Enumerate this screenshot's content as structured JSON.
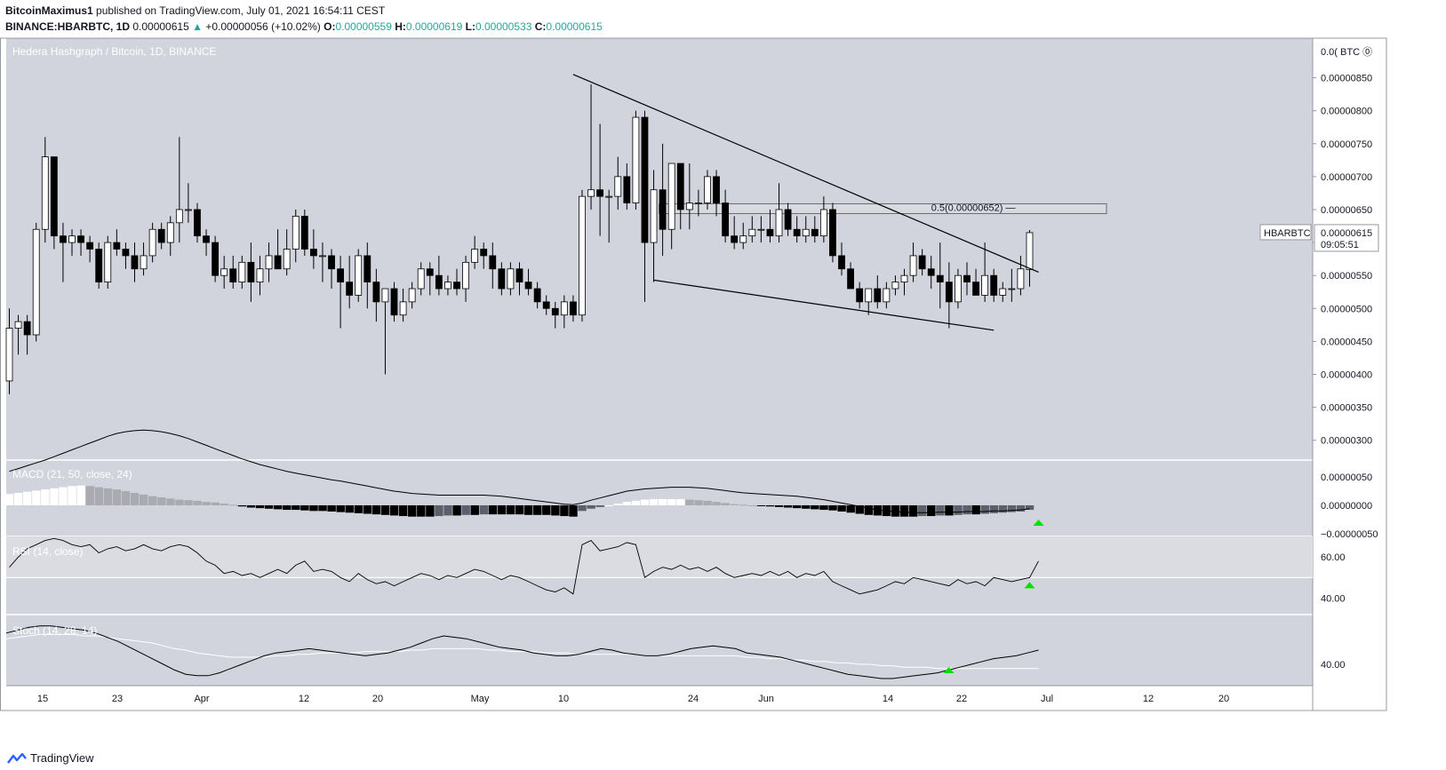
{
  "header": {
    "author": "BitcoinMaximus1",
    "published": "published on TradingView.com, July 01, 2021 16:54:11 CEST",
    "symbol": "BINANCE:HBARBTC, 1D",
    "last": "0.00000615",
    "arrow": "▲",
    "change": "+0.00000056 (+10.02%)",
    "o_label": "O:",
    "o": "0.00000559",
    "h_label": "H:",
    "h": "0.00000619",
    "l_label": "L:",
    "l": "0.00000533",
    "c_label": "C:",
    "c": "0.00000615"
  },
  "footer": {
    "brand": "TradingView"
  },
  "colors": {
    "pane_bg": "#d1d4dc",
    "candle_up": "#ffffff",
    "candle_down": "#000000",
    "signal_triangle": "#00e000",
    "header_value": "#26a69a"
  },
  "chart_data": {
    "type": "candlestick",
    "title": "Hedera Hashgraph / Bitcoin, 1D, BINANCE",
    "y_unit": "BTC",
    "y_ticks": [
      "0.00000850",
      "0.00000800",
      "0.00000750",
      "0.00000700",
      "0.00000650",
      "0.00000600",
      "0.00000550",
      "0.00000500",
      "0.00000450",
      "0.00000400",
      "0.00000350",
      "0.00000300"
    ],
    "y_top_label": "0.0( BTC ⓪",
    "x_ticks": [
      "15",
      "23",
      "Apr",
      "12",
      "20",
      "May",
      "10",
      "24",
      "Jun",
      "14",
      "22",
      "Jul",
      "12",
      "20"
    ],
    "ylim": [
      2.7e-06,
      9.1e-06
    ],
    "price_label": {
      "symbol": "HBARBTC",
      "value": "0.00000615",
      "countdown": "09:05:51"
    },
    "fib_label": "0.5(0.00000652)",
    "fib_level": 6.52e-06,
    "candles": [
      [
        3.9e-06,
        5e-06,
        3.7e-06,
        4.7e-06
      ],
      [
        4.7e-06,
        4.9e-06,
        4.3e-06,
        4.8e-06
      ],
      [
        4.8e-06,
        4.9e-06,
        4.3e-06,
        4.6e-06
      ],
      [
        4.6e-06,
        6.3e-06,
        4.5e-06,
        6.2e-06
      ],
      [
        6.2e-06,
        7.6e-06,
        6e-06,
        7.3e-06
      ],
      [
        7.3e-06,
        7.3e-06,
        5.9e-06,
        6.1e-06
      ],
      [
        6.1e-06,
        6.3e-06,
        5.4e-06,
        6e-06
      ],
      [
        6e-06,
        6.2e-06,
        5.8e-06,
        6.1e-06
      ],
      [
        6.1e-06,
        6.2e-06,
        5.8e-06,
        6e-06
      ],
      [
        6e-06,
        6.1e-06,
        5.7e-06,
        5.9e-06
      ],
      [
        5.9e-06,
        6e-06,
        5.3e-06,
        5.4e-06
      ],
      [
        5.4e-06,
        6.1e-06,
        5.3e-06,
        6e-06
      ],
      [
        6e-06,
        6.2e-06,
        5.8e-06,
        5.9e-06
      ],
      [
        5.9e-06,
        6e-06,
        5.6e-06,
        5.8e-06
      ],
      [
        5.8e-06,
        6e-06,
        5.4e-06,
        5.6e-06
      ],
      [
        5.6e-06,
        6e-06,
        5.5e-06,
        5.8e-06
      ],
      [
        5.8e-06,
        6.3e-06,
        5.7e-06,
        6.2e-06
      ],
      [
        6.2e-06,
        6.3e-06,
        5.9e-06,
        6e-06
      ],
      [
        6e-06,
        6.4e-06,
        5.8e-06,
        6.3e-06
      ],
      [
        6.3e-06,
        7.6e-06,
        6e-06,
        6.5e-06
      ],
      [
        6.5e-06,
        6.9e-06,
        6.3e-06,
        6.5e-06
      ],
      [
        6.5e-06,
        6.6e-06,
        6e-06,
        6.1e-06
      ],
      [
        6.1e-06,
        6.2e-06,
        5.8e-06,
        6e-06
      ],
      [
        6e-06,
        6.1e-06,
        5.4e-06,
        5.5e-06
      ],
      [
        5.5e-06,
        5.8e-06,
        5.3e-06,
        5.6e-06
      ],
      [
        5.6e-06,
        5.8e-06,
        5.3e-06,
        5.4e-06
      ],
      [
        5.4e-06,
        5.8e-06,
        5.3e-06,
        5.7e-06
      ],
      [
        5.7e-06,
        6e-06,
        5.1e-06,
        5.4e-06
      ],
      [
        5.4e-06,
        5.8e-06,
        5.2e-06,
        5.6e-06
      ],
      [
        5.6e-06,
        6e-06,
        5.4e-06,
        5.8e-06
      ],
      [
        5.8e-06,
        6.2e-06,
        5.6e-06,
        5.6e-06
      ],
      [
        5.6e-06,
        6.2e-06,
        5.5e-06,
        5.9e-06
      ],
      [
        5.9e-06,
        6.5e-06,
        5.7e-06,
        6.4e-06
      ],
      [
        6.4e-06,
        6.5e-06,
        5.8e-06,
        5.9e-06
      ],
      [
        5.9e-06,
        6.2e-06,
        5.6e-06,
        5.8e-06
      ],
      [
        5.8e-06,
        6e-06,
        5.4e-06,
        5.8e-06
      ],
      [
        5.8e-06,
        5.9e-06,
        5.3e-06,
        5.6e-06
      ],
      [
        5.6e-06,
        5.8e-06,
        4.7e-06,
        5.4e-06
      ],
      [
        5.4e-06,
        5.8e-06,
        5e-06,
        5.2e-06
      ],
      [
        5.2e-06,
        5.9e-06,
        5.1e-06,
        5.8e-06
      ],
      [
        5.8e-06,
        6e-06,
        5e-06,
        5.4e-06
      ],
      [
        5.4e-06,
        5.6e-06,
        4.8e-06,
        5.1e-06
      ],
      [
        5.1e-06,
        5.3e-06,
        4e-06,
        5.3e-06
      ],
      [
        5.3e-06,
        5.4e-06,
        4.8e-06,
        4.9e-06
      ],
      [
        4.9e-06,
        5.3e-06,
        4.8e-06,
        5.1e-06
      ],
      [
        5.1e-06,
        5.4e-06,
        5e-06,
        5.3e-06
      ],
      [
        5.3e-06,
        5.7e-06,
        5.2e-06,
        5.6e-06
      ],
      [
        5.6e-06,
        5.7e-06,
        5.2e-06,
        5.5e-06
      ],
      [
        5.5e-06,
        5.8e-06,
        5.2e-06,
        5.3e-06
      ],
      [
        5.3e-06,
        5.5e-06,
        5.2e-06,
        5.4e-06
      ],
      [
        5.4e-06,
        5.6e-06,
        5.2e-06,
        5.3e-06
      ],
      [
        5.3e-06,
        5.8e-06,
        5.1e-06,
        5.7e-06
      ],
      [
        5.7e-06,
        6.1e-06,
        5.6e-06,
        5.9e-06
      ],
      [
        5.9e-06,
        6e-06,
        5.6e-06,
        5.8e-06
      ],
      [
        5.8e-06,
        6e-06,
        5.3e-06,
        5.6e-06
      ],
      [
        5.6e-06,
        5.7e-06,
        5.2e-06,
        5.3e-06
      ],
      [
        5.3e-06,
        5.7e-06,
        5.2e-06,
        5.6e-06
      ],
      [
        5.6e-06,
        5.7e-06,
        5.2e-06,
        5.4e-06
      ],
      [
        5.4e-06,
        5.6e-06,
        5.2e-06,
        5.3e-06
      ],
      [
        5.3e-06,
        5.4e-06,
        5e-06,
        5.1e-06
      ],
      [
        5.1e-06,
        5.2e-06,
        4.9e-06,
        5e-06
      ],
      [
        5e-06,
        5.1e-06,
        4.7e-06,
        4.9e-06
      ],
      [
        4.9e-06,
        5.2e-06,
        4.7e-06,
        5.1e-06
      ],
      [
        5.1e-06,
        5.2e-06,
        4.8e-06,
        4.9e-06
      ],
      [
        4.9e-06,
        6.8e-06,
        4.8e-06,
        6.7e-06
      ],
      [
        6.7e-06,
        8.4e-06,
        6.5e-06,
        6.8e-06
      ],
      [
        6.8e-06,
        7.8e-06,
        6.1e-06,
        6.7e-06
      ],
      [
        6.7e-06,
        6.8e-06,
        6e-06,
        6.7e-06
      ],
      [
        6.7e-06,
        7.3e-06,
        6.5e-06,
        7e-06
      ],
      [
        7e-06,
        7.2e-06,
        6.5e-06,
        6.6e-06
      ],
      [
        6.6e-06,
        8e-06,
        6.5e-06,
        7.9e-06
      ],
      [
        7.9e-06,
        8e-06,
        5.1e-06,
        6e-06
      ],
      [
        6e-06,
        7.1e-06,
        5.4e-06,
        6.8e-06
      ],
      [
        6.8e-06,
        7.5e-06,
        5.8e-06,
        6.2e-06
      ],
      [
        6.2e-06,
        7.2e-06,
        5.9e-06,
        7.2e-06
      ],
      [
        7.2e-06,
        7.2e-06,
        6.2e-06,
        6.5e-06
      ],
      [
        6.5e-06,
        7.2e-06,
        6.2e-06,
        6.6e-06
      ],
      [
        6.6e-06,
        6.8e-06,
        6.4e-06,
        6.6e-06
      ],
      [
        6.6e-06,
        7.1e-06,
        6.5e-06,
        7e-06
      ],
      [
        7e-06,
        7.1e-06,
        6.4e-06,
        6.6e-06
      ],
      [
        6.6e-06,
        6.8e-06,
        6e-06,
        6.1e-06
      ],
      [
        6.1e-06,
        6.4e-06,
        5.9e-06,
        6e-06
      ],
      [
        6e-06,
        6.3e-06,
        5.9e-06,
        6.1e-06
      ],
      [
        6.1e-06,
        6.4e-06,
        6e-06,
        6.2e-06
      ],
      [
        6.2e-06,
        6.4e-06,
        6e-06,
        6.2e-06
      ],
      [
        6.2e-06,
        6.5e-06,
        6e-06,
        6.1e-06
      ],
      [
        6.1e-06,
        6.9e-06,
        6e-06,
        6.5e-06
      ],
      [
        6.5e-06,
        6.6e-06,
        6.1e-06,
        6.2e-06
      ],
      [
        6.2e-06,
        6.4e-06,
        6e-06,
        6.1e-06
      ],
      [
        6.1e-06,
        6.4e-06,
        6e-06,
        6.2e-06
      ],
      [
        6.2e-06,
        6.4e-06,
        6e-06,
        6.1e-06
      ],
      [
        6.1e-06,
        6.7e-06,
        6e-06,
        6.5e-06
      ],
      [
        6.5e-06,
        6.6e-06,
        5.7e-06,
        5.8e-06
      ],
      [
        5.8e-06,
        6e-06,
        5.5e-06,
        5.6e-06
      ],
      [
        5.6e-06,
        5.7e-06,
        5.3e-06,
        5.3e-06
      ],
      [
        5.3e-06,
        5.4e-06,
        5e-06,
        5.1e-06
      ],
      [
        5.1e-06,
        5.3e-06,
        4.9e-06,
        5.3e-06
      ],
      [
        5.3e-06,
        5.5e-06,
        5e-06,
        5.1e-06
      ],
      [
        5.1e-06,
        5.4e-06,
        5e-06,
        5.3e-06
      ],
      [
        5.3e-06,
        5.5e-06,
        5.2e-06,
        5.4e-06
      ],
      [
        5.4e-06,
        5.6e-06,
        5.2e-06,
        5.5e-06
      ],
      [
        5.5e-06,
        6e-06,
        5.4e-06,
        5.8e-06
      ],
      [
        5.8e-06,
        5.9e-06,
        5.5e-06,
        5.6e-06
      ],
      [
        5.6e-06,
        5.8e-06,
        5.3e-06,
        5.5e-06
      ],
      [
        5.5e-06,
        6e-06,
        5e-06,
        5.4e-06
      ],
      [
        5.4e-06,
        5.7e-06,
        4.7e-06,
        5.1e-06
      ],
      [
        5.1e-06,
        5.6e-06,
        5e-06,
        5.5e-06
      ],
      [
        5.5e-06,
        5.7e-06,
        5.2e-06,
        5.4e-06
      ],
      [
        5.4e-06,
        5.6e-06,
        5.2e-06,
        5.2e-06
      ],
      [
        5.2e-06,
        6e-06,
        5.1e-06,
        5.5e-06
      ],
      [
        5.5e-06,
        5.6e-06,
        5.1e-06,
        5.2e-06
      ],
      [
        5.2e-06,
        5.4e-06,
        5.1e-06,
        5.3e-06
      ],
      [
        5.3e-06,
        5.6e-06,
        5.1e-06,
        5.3e-06
      ],
      [
        5.3e-06,
        5.8e-06,
        5.2e-06,
        5.6e-06
      ],
      [
        5.59e-06,
        6.19e-06,
        5.33e-06,
        6.15e-06
      ]
    ],
    "trendlines": [
      [
        [
          63,
          8.55e-06
        ],
        [
          115,
          5.55e-06
        ]
      ],
      [
        [
          72,
          5.43e-06
        ],
        [
          110,
          4.67e-06
        ]
      ]
    ],
    "macd": {
      "label": "MACD (21, 50, close, 24)",
      "ticks": [
        "0.00000050",
        "0.00000000",
        "−0.00000050"
      ],
      "ylim": [
        -5.5e-07,
        8e-07
      ],
      "histogram": [
        2e-07,
        2.2e-07,
        2.4e-07,
        2.6e-07,
        2.8e-07,
        3e-07,
        3.2e-07,
        3.4e-07,
        3.5e-07,
        3.4e-07,
        3.2e-07,
        3e-07,
        2.8e-07,
        2.5e-07,
        2.2e-07,
        1.9e-07,
        1.6e-07,
        1.4e-07,
        1.2e-07,
        1e-07,
        9e-08,
        8e-08,
        6e-08,
        5e-08,
        3e-08,
        1e-08,
        -2e-08,
        -4e-08,
        -5e-08,
        -6e-08,
        -7e-08,
        -8e-08,
        -8e-08,
        -9e-08,
        -1e-07,
        -1e-07,
        -1.1e-07,
        -1.2e-07,
        -1.3e-07,
        -1.4e-07,
        -1.5e-07,
        -1.6e-07,
        -1.7e-07,
        -1.8e-07,
        -1.9e-07,
        -2e-07,
        -2e-07,
        -2e-07,
        -1.9e-07,
        -1.8e-07,
        -1.8e-07,
        -1.7e-07,
        -1.7e-07,
        -1.6e-07,
        -1.6e-07,
        -1.6e-07,
        -1.6e-07,
        -1.6e-07,
        -1.7e-07,
        -1.7e-07,
        -1.7e-07,
        -1.8e-07,
        -1.9e-07,
        -2e-07,
        -1e-07,
        -6e-08,
        -3e-08,
        0.0,
        3e-08,
        6e-08,
        8e-08,
        1e-07,
        1.1e-07,
        1.1e-07,
        1.1e-07,
        1.1e-07,
        1e-07,
        9e-08,
        8e-08,
        6e-08,
        4e-08,
        2e-08,
        1e-08,
        0.0,
        -1e-08,
        -2e-08,
        -3e-08,
        -4e-08,
        -5e-08,
        -6e-08,
        -7e-08,
        -8e-08,
        -9e-08,
        -1.1e-07,
        -1.3e-07,
        -1.5e-07,
        -1.7e-07,
        -1.8e-07,
        -1.9e-07,
        -2e-07,
        -2e-07,
        -2e-07,
        -1.9e-07,
        -1.9e-07,
        -1.8e-07,
        -1.8e-07,
        -1.7e-07,
        -1.6e-07,
        -1.6e-07,
        -1.5e-07,
        -1.4e-07,
        -1.3e-07,
        -1.2e-07,
        -1.1e-07,
        -8e-08
      ],
      "line": [
        6e-07,
        6.5e-07,
        7e-07,
        7.5e-07,
        8e-07,
        8.6e-07,
        9.2e-07,
        9.8e-07,
        1.04e-06,
        1.1e-06,
        1.16e-06,
        1.22e-06,
        1.27e-06,
        1.3e-06,
        1.32e-06,
        1.33e-06,
        1.32e-06,
        1.3e-06,
        1.27e-06,
        1.23e-06,
        1.18e-06,
        1.12e-06,
        1.06e-06,
        1e-06,
        9.4e-07,
        8.8e-07,
        8.2e-07,
        7.7e-07,
        7.2e-07,
        6.8e-07,
        6.4e-07,
        6e-07,
        5.7e-07,
        5.4e-07,
        5.1e-07,
        4.8e-07,
        4.5e-07,
        4.3e-07,
        4e-07,
        3.7e-07,
        3.4e-07,
        3.1e-07,
        2.8e-07,
        2.5e-07,
        2.3e-07,
        2.1e-07,
        2e-07,
        1.9e-07,
        1.8e-07,
        1.8e-07,
        1.8e-07,
        1.8e-07,
        1.8e-07,
        1.8e-07,
        1.7e-07,
        1.6e-07,
        1.4e-07,
        1.2e-07,
        1e-07,
        8e-08,
        6e-08,
        4e-08,
        2e-08,
        1e-08,
        4e-08,
        9e-08,
        1.3e-07,
        1.7e-07,
        2.1e-07,
        2.5e-07,
        2.7e-07,
        2.9e-07,
        3e-07,
        3.1e-07,
        3.2e-07,
        3.2e-07,
        3.2e-07,
        3.1e-07,
        3e-07,
        2.8e-07,
        2.6e-07,
        2.4e-07,
        2.2e-07,
        2.1e-07,
        2e-07,
        1.9e-07,
        1.8e-07,
        1.7e-07,
        1.6e-07,
        1.4e-07,
        1.2e-07,
        1e-07,
        7e-08,
        4e-08,
        1e-08,
        -2e-08,
        -5e-08,
        -8e-08,
        -1e-07,
        -1.1e-07,
        -1.2e-07,
        -1.3e-07,
        -1.3e-07,
        -1.3e-07,
        -1.2e-07,
        -1.2e-07,
        -1.2e-07,
        -1.1e-07,
        -1.1e-07,
        -1.1e-07,
        -1e-07,
        -1e-07,
        -9e-08,
        -8e-08,
        -6e-08
      ],
      "bullish_signal_index": 115
    },
    "rsi": {
      "label": "RSI (14, close)",
      "ticks": [
        "60.00",
        "40.00"
      ],
      "ylim": [
        32,
        70
      ],
      "reference_level": 50,
      "values": [
        55,
        60,
        64,
        66,
        68,
        69,
        68,
        66,
        65,
        66,
        62,
        64,
        65,
        63,
        64,
        66,
        64,
        63,
        65,
        66,
        65,
        62,
        58,
        56,
        52,
        53,
        51,
        52,
        50,
        52,
        54,
        52,
        56,
        58,
        53,
        54,
        53,
        50,
        48,
        52,
        49,
        47,
        48,
        46,
        48,
        50,
        52,
        51,
        49,
        51,
        50,
        52,
        54,
        53,
        51,
        49,
        51,
        50,
        48,
        46,
        44,
        43,
        45,
        42,
        66,
        68,
        63,
        64,
        65,
        67,
        66,
        50,
        53,
        55,
        54,
        56,
        54,
        55,
        53,
        55,
        52,
        50,
        51,
        52,
        51,
        53,
        51,
        53,
        50,
        52,
        51,
        53,
        48,
        46,
        44,
        42,
        43,
        44,
        46,
        48,
        47,
        50,
        49,
        48,
        47,
        46,
        49,
        47,
        48,
        46,
        50,
        49,
        48,
        49,
        50,
        58
      ]
    },
    "stoch": {
      "label": "Stoch (14, 28, 14)",
      "ticks": [
        "40.00"
      ],
      "ylim": [
        25,
        75
      ],
      "k": [
        62,
        64,
        66,
        67,
        67,
        66,
        65,
        64,
        62,
        59,
        56,
        52,
        48,
        44,
        40,
        36,
        33,
        32,
        32,
        34,
        37,
        40,
        43,
        46,
        48,
        49,
        50,
        51,
        50,
        49,
        48,
        47,
        46,
        47,
        48,
        50,
        52,
        55,
        58,
        60,
        59,
        58,
        56,
        54,
        52,
        51,
        50,
        48,
        47,
        46,
        46,
        47,
        49,
        51,
        50,
        48,
        47,
        46,
        46,
        47,
        49,
        51,
        52,
        53,
        52,
        51,
        48,
        47,
        46,
        45,
        43,
        41,
        39,
        37,
        35,
        33,
        32,
        31,
        30,
        30,
        31,
        32,
        33,
        34,
        36,
        38,
        40,
        42,
        44,
        45,
        46,
        48,
        50
      ],
      "d": [
        58,
        59,
        60,
        61,
        61,
        61,
        61,
        60,
        60,
        59,
        58,
        57,
        56,
        55,
        53,
        51,
        50,
        48,
        47,
        46,
        45,
        45,
        45,
        45,
        46,
        46,
        47,
        47,
        48,
        48,
        48,
        48,
        49,
        49,
        49,
        49,
        50,
        50,
        51,
        51,
        51,
        51,
        51,
        50,
        50,
        49,
        49,
        49,
        48,
        48,
        48,
        47,
        47,
        47,
        47,
        47,
        47,
        46,
        46,
        46,
        46,
        46,
        46,
        46,
        46,
        46,
        45,
        45,
        44,
        44,
        43,
        43,
        42,
        42,
        41,
        41,
        40,
        40,
        39,
        39,
        38,
        38,
        38,
        37,
        37,
        37,
        37,
        37,
        37,
        37,
        37,
        37,
        37
      ],
      "bullish_signal_index": 84
    }
  }
}
